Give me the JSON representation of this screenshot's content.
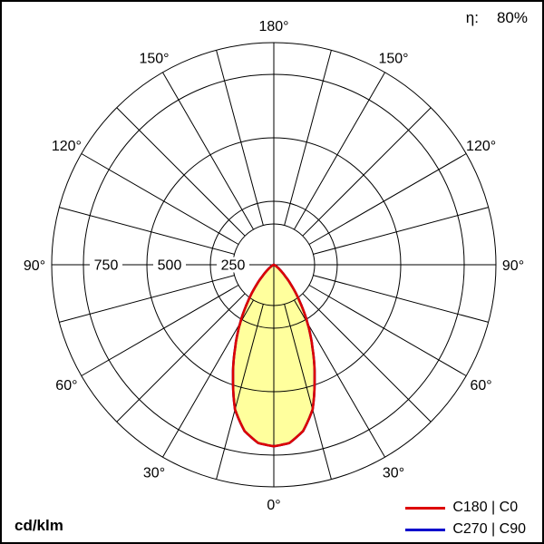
{
  "header": {
    "efficiency_label": "η:",
    "efficiency_value": "80%"
  },
  "footer": {
    "unit": "cd/klm"
  },
  "legend": {
    "items": [
      {
        "label": "C180 | C0",
        "color": "#dd0000"
      },
      {
        "label": "C270 | C90",
        "color": "#0000cc"
      }
    ]
  },
  "chart_data": {
    "type": "polar",
    "unit": "cd/klm",
    "ring_values": [
      250,
      500,
      750
    ],
    "ring_max": 875,
    "angle_step_deg": 15,
    "gamma_range_deg": [
      0,
      90
    ],
    "grid": true,
    "legend_position": "bottom-right",
    "angle_labels": [
      {
        "text": "180°",
        "gamma": 180,
        "side": 0
      },
      {
        "text": "150°",
        "gamma": 150,
        "side": -1
      },
      {
        "text": "150°",
        "gamma": 150,
        "side": 1
      },
      {
        "text": "120°",
        "gamma": 120,
        "side": -1
      },
      {
        "text": "120°",
        "gamma": 120,
        "side": 1
      },
      {
        "text": "90°",
        "gamma": 90,
        "side": -1
      },
      {
        "text": "90°",
        "gamma": 90,
        "side": 1
      },
      {
        "text": "60°",
        "gamma": 60,
        "side": -1
      },
      {
        "text": "60°",
        "gamma": 60,
        "side": 1
      },
      {
        "text": "30°",
        "gamma": 30,
        "side": -1
      },
      {
        "text": "30°",
        "gamma": 30,
        "side": 1
      },
      {
        "text": "0°",
        "gamma": 0,
        "side": 0
      }
    ],
    "gamma_deg": [
      0,
      5,
      10,
      15,
      20,
      25,
      30,
      35,
      40,
      45,
      50,
      55,
      60,
      65,
      70,
      75,
      80,
      85,
      90
    ],
    "series": [
      {
        "name": "C180 | C0",
        "color": "#dd0000",
        "fill": "#ffff9d",
        "values": [
          715,
          705,
          665,
          590,
          470,
          360,
          265,
          180,
          112,
          62,
          33,
          17,
          8,
          4,
          2,
          1,
          0.5,
          0.2,
          0
        ]
      },
      {
        "name": "C270 | C90",
        "color": "#0000cc",
        "fill": null,
        "values": [
          715,
          705,
          665,
          590,
          470,
          360,
          265,
          180,
          112,
          62,
          33,
          17,
          8,
          4,
          2,
          1,
          0.5,
          0.2,
          0
        ]
      }
    ]
  }
}
